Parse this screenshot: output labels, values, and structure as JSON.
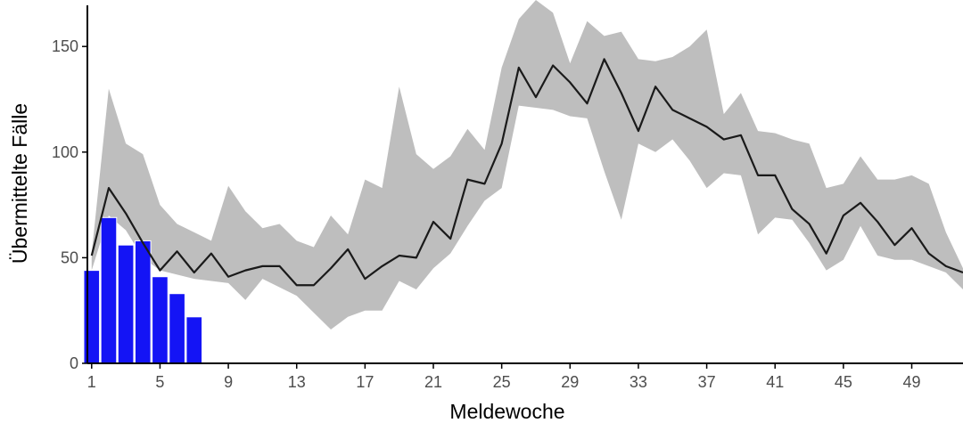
{
  "chart_data": {
    "type": "bar+line+area",
    "xlabel": "Meldewoche",
    "ylabel": "Übermittelte Fälle",
    "xlim": [
      0.75,
      52.0
    ],
    "ylim": [
      0,
      172
    ],
    "x_ticks": [
      1,
      5,
      9,
      13,
      17,
      21,
      25,
      29,
      33,
      37,
      41,
      45,
      49
    ],
    "y_ticks": [
      0,
      50,
      100,
      150
    ],
    "grid": false,
    "legend": "none",
    "colors": {
      "bars": "#1414f5",
      "bar_outline": "#ffffff",
      "line": "#1a1a1a",
      "band": "#bebebe",
      "axis": "#000000"
    },
    "bars": {
      "weeks": [
        1,
        2,
        3,
        4,
        5,
        6,
        7
      ],
      "values": [
        44,
        69,
        56,
        58,
        41,
        33,
        22
      ]
    },
    "line": {
      "weeks": [
        1,
        2,
        3,
        4,
        5,
        6,
        7,
        8,
        9,
        10,
        11,
        12,
        13,
        14,
        15,
        16,
        17,
        18,
        19,
        20,
        21,
        22,
        23,
        24,
        25,
        26,
        27,
        28,
        29,
        30,
        31,
        32,
        33,
        34,
        35,
        36,
        37,
        38,
        39,
        40,
        41,
        42,
        43,
        44,
        45,
        46,
        47,
        48,
        49,
        50,
        51,
        52
      ],
      "values": [
        51,
        83,
        71,
        57,
        44,
        53,
        43,
        52,
        41,
        44,
        46,
        46,
        37,
        37,
        45,
        54,
        40,
        46,
        51,
        50,
        67,
        59,
        87,
        85,
        104,
        140,
        126,
        141,
        133,
        123,
        144,
        128,
        110,
        131,
        120,
        116,
        112,
        106,
        108,
        89,
        89,
        73,
        66,
        52,
        70,
        76,
        67,
        56,
        64,
        52,
        46,
        43
      ]
    },
    "band": {
      "weeks": [
        1,
        2,
        3,
        4,
        5,
        6,
        7,
        8,
        9,
        10,
        11,
        12,
        13,
        14,
        15,
        16,
        17,
        18,
        19,
        20,
        21,
        22,
        23,
        24,
        25,
        26,
        27,
        28,
        29,
        30,
        31,
        32,
        33,
        34,
        35,
        36,
        37,
        38,
        39,
        40,
        41,
        42,
        43,
        44,
        45,
        46,
        47,
        48,
        49,
        50,
        51,
        52
      ],
      "upper": [
        52,
        130,
        104,
        99,
        75,
        66,
        62,
        58,
        84,
        72,
        64,
        66,
        58,
        55,
        70,
        61,
        87,
        83,
        131,
        99,
        92,
        98,
        111,
        101,
        140,
        163,
        172,
        166,
        142,
        162,
        155,
        157,
        144,
        143,
        145,
        150,
        158,
        118,
        128,
        110,
        109,
        106,
        104,
        83,
        85,
        98,
        87,
        87,
        89,
        85,
        62,
        45
      ],
      "lower": [
        44,
        70,
        63,
        50,
        44,
        42,
        40,
        39,
        38,
        30,
        40,
        36,
        32,
        24,
        16,
        22,
        25,
        25,
        39,
        35,
        45,
        52,
        65,
        77,
        83,
        122,
        121,
        120,
        117,
        116,
        91,
        68,
        104,
        100,
        106,
        96,
        83,
        90,
        89,
        61,
        69,
        68,
        57,
        44,
        49,
        65,
        51,
        49,
        49,
        46,
        43,
        35
      ]
    }
  }
}
